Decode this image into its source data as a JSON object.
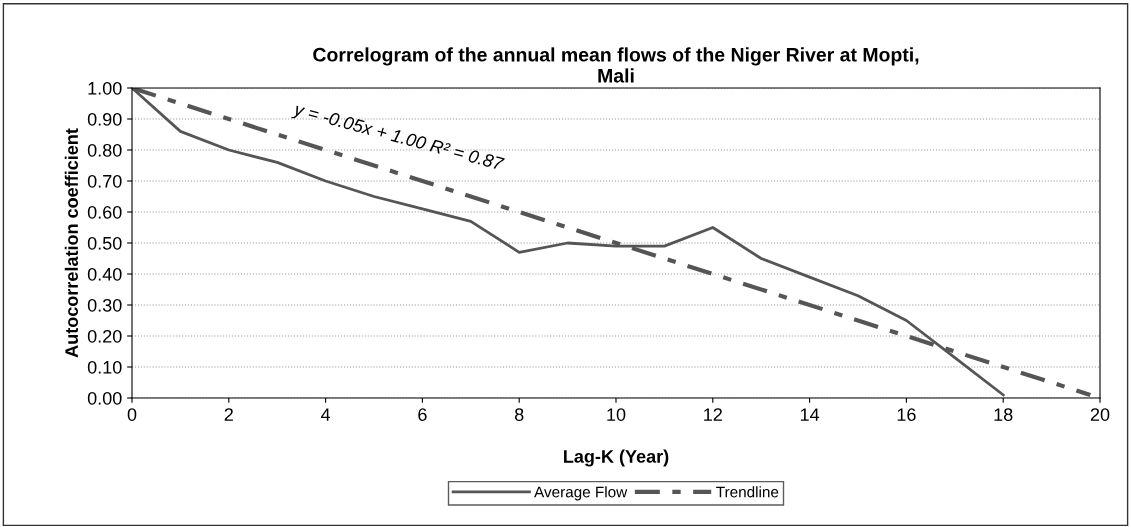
{
  "chart_data": {
    "type": "line",
    "title": "Correlogram of the annual mean flows of the Niger River at Mopti,\nMali",
    "xlabel": "Lag-K (Year)",
    "ylabel": "Autocorrelation coefficient",
    "series": [
      {
        "name": "Average Flow",
        "color": "#555555",
        "line_style": "solid",
        "x": [
          0,
          1,
          2,
          3,
          4,
          5,
          6,
          7,
          8,
          9,
          10,
          11,
          12,
          13,
          14,
          15,
          16,
          17,
          18
        ],
        "values": [
          1.0,
          0.86,
          0.8,
          0.76,
          0.7,
          0.65,
          0.61,
          0.57,
          0.47,
          0.5,
          0.49,
          0.49,
          0.55,
          0.45,
          0.39,
          0.33,
          0.25,
          0.13,
          0.01
        ]
      },
      {
        "name": "Trendline",
        "color": "#555555",
        "line_style": "dashed",
        "x": [
          0,
          19.8
        ],
        "values": [
          1.0,
          0.01
        ]
      }
    ],
    "annotations": [
      "y = -0.05x + 1.00 R² = 0.87"
    ],
    "xlim": [
      0,
      20
    ],
    "xticks": [
      0,
      2,
      4,
      6,
      8,
      10,
      12,
      14,
      16,
      18,
      20
    ],
    "ylim": [
      0,
      1
    ],
    "yticks": [
      {
        "value": 0,
        "label": "0.00"
      },
      {
        "value": 0.1,
        "label": "0.10"
      },
      {
        "value": 0.2,
        "label": "0.20"
      },
      {
        "value": 0.3,
        "label": "0.30"
      },
      {
        "value": 0.4,
        "label": "0.40"
      },
      {
        "value": 0.5,
        "label": "0.50"
      },
      {
        "value": 0.6,
        "label": "0.60"
      },
      {
        "value": 0.7,
        "label": "0.70"
      },
      {
        "value": 0.8,
        "label": "0.80"
      },
      {
        "value": 0.9,
        "label": "0.90"
      },
      {
        "value": 1.0,
        "label": "1.00"
      }
    ],
    "grid": "y",
    "legend": "bottom",
    "marker": "none"
  }
}
